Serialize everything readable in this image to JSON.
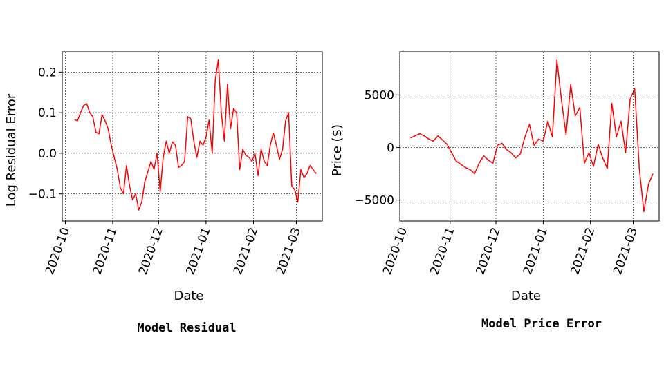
{
  "chart_data": [
    {
      "type": "line",
      "title": "",
      "xlabel": "Date",
      "ylabel": "Log Residual Error",
      "caption": "Model Residual",
      "xticks": [
        "2020-10",
        "2020-11",
        "2020-12",
        "2021-01",
        "2021-02",
        "2021-03"
      ],
      "yticks": [
        "0.2",
        "0.1",
        "0.0",
        "−0.1"
      ],
      "ytick_values": [
        0.2,
        0.1,
        0.0,
        -0.1
      ],
      "xlim": [
        "2020-09-29",
        "2021-03-18"
      ],
      "ylim": [
        -0.167,
        0.25
      ],
      "grid": true,
      "line_color": "#ff0000",
      "x": [
        "2020-10-07",
        "2020-10-09",
        "2020-10-11",
        "2020-10-13",
        "2020-10-15",
        "2020-10-17",
        "2020-10-19",
        "2020-10-21",
        "2020-10-23",
        "2020-10-25",
        "2020-10-27",
        "2020-10-29",
        "2020-10-31",
        "2020-11-02",
        "2020-11-04",
        "2020-11-06",
        "2020-11-08",
        "2020-11-10",
        "2020-11-12",
        "2020-11-14",
        "2020-11-16",
        "2020-11-18",
        "2020-11-20",
        "2020-11-22",
        "2020-11-24",
        "2020-11-26",
        "2020-11-28",
        "2020-11-30",
        "2020-12-02",
        "2020-12-04",
        "2020-12-06",
        "2020-12-08",
        "2020-12-10",
        "2020-12-12",
        "2020-12-14",
        "2020-12-16",
        "2020-12-18",
        "2020-12-20",
        "2020-12-22",
        "2020-12-24",
        "2020-12-26",
        "2020-12-28",
        "2020-12-30",
        "2021-01-01",
        "2021-01-03",
        "2021-01-05",
        "2021-01-07",
        "2021-01-09",
        "2021-01-11",
        "2021-01-13",
        "2021-01-15",
        "2021-01-17",
        "2021-01-19",
        "2021-01-21",
        "2021-01-23",
        "2021-01-25",
        "2021-01-27",
        "2021-01-29",
        "2021-01-31",
        "2021-02-02",
        "2021-02-04",
        "2021-02-06",
        "2021-02-08",
        "2021-02-10",
        "2021-02-12",
        "2021-02-14",
        "2021-02-16",
        "2021-02-18",
        "2021-02-20",
        "2021-02-22",
        "2021-02-24",
        "2021-02-26",
        "2021-02-28",
        "2021-03-02",
        "2021-03-04",
        "2021-03-06",
        "2021-03-08",
        "2021-03-10",
        "2021-03-12",
        "2021-03-14"
      ],
      "y": [
        0.083,
        0.08,
        0.1,
        0.118,
        0.122,
        0.1,
        0.09,
        0.052,
        0.048,
        0.095,
        0.08,
        0.06,
        0.02,
        -0.01,
        -0.04,
        -0.085,
        -0.1,
        -0.03,
        -0.08,
        -0.115,
        -0.1,
        -0.14,
        -0.12,
        -0.07,
        -0.045,
        -0.02,
        -0.04,
        0.0,
        -0.095,
        -0.01,
        0.03,
        0.0,
        0.028,
        0.02,
        -0.035,
        -0.03,
        -0.02,
        0.09,
        0.085,
        0.03,
        -0.01,
        0.03,
        0.02,
        0.04,
        0.082,
        0.0,
        0.18,
        0.23,
        0.1,
        0.03,
        0.17,
        0.06,
        0.11,
        0.1,
        -0.04,
        0.01,
        -0.005,
        -0.01,
        -0.02,
        0.0,
        -0.055,
        0.01,
        -0.02,
        -0.03,
        0.02,
        0.05,
        0.02,
        -0.015,
        0.01,
        0.08,
        0.1,
        -0.08,
        -0.09,
        -0.12,
        -0.04,
        -0.06,
        -0.05,
        -0.03,
        -0.04,
        -0.05
      ]
    },
    {
      "type": "line",
      "title": "",
      "xlabel": "Date",
      "ylabel": "Price ($)",
      "caption": "Model Price Error",
      "xticks": [
        "2020-10",
        "2020-11",
        "2020-12",
        "2021-01",
        "2021-02",
        "2021-03"
      ],
      "yticks": [
        "5000",
        "0",
        "−5000"
      ],
      "ytick_values": [
        5000,
        0,
        -5000
      ],
      "xlim": [
        "2020-09-29",
        "2021-03-18"
      ],
      "ylim": [
        -7000,
        9100
      ],
      "grid": true,
      "line_color": "#ff0000",
      "x": [
        "2020-10-06",
        "2020-10-09",
        "2020-10-12",
        "2020-10-15",
        "2020-10-18",
        "2020-10-21",
        "2020-10-24",
        "2020-10-27",
        "2020-10-30",
        "2020-11-02",
        "2020-11-05",
        "2020-11-08",
        "2020-11-11",
        "2020-11-14",
        "2020-11-17",
        "2020-11-20",
        "2020-11-23",
        "2020-11-26",
        "2020-11-29",
        "2020-12-02",
        "2020-12-05",
        "2020-12-08",
        "2020-12-11",
        "2020-12-14",
        "2020-12-17",
        "2020-12-20",
        "2020-12-23",
        "2020-12-26",
        "2020-12-29",
        "2021-01-01",
        "2021-01-04",
        "2021-01-07",
        "2021-01-10",
        "2021-01-13",
        "2021-01-16",
        "2021-01-19",
        "2021-01-22",
        "2021-01-25",
        "2021-01-28",
        "2021-01-31",
        "2021-02-03",
        "2021-02-06",
        "2021-02-09",
        "2021-02-12",
        "2021-02-15",
        "2021-02-18",
        "2021-02-21",
        "2021-02-24",
        "2021-02-27",
        "2021-03-02",
        "2021-03-05",
        "2021-03-08",
        "2021-03-11",
        "2021-03-14"
      ],
      "y": [
        900,
        1100,
        1300,
        1100,
        800,
        600,
        1100,
        700,
        300,
        -500,
        -1300,
        -1600,
        -1900,
        -2100,
        -2500,
        -1500,
        -800,
        -1200,
        -1500,
        200,
        400,
        -200,
        -500,
        -1000,
        -600,
        1000,
        2200,
        200,
        800,
        600,
        2500,
        1000,
        8300,
        4500,
        1200,
        6000,
        3000,
        3800,
        -1500,
        -500,
        -1800,
        300,
        -1000,
        -2000,
        4200,
        1000,
        2500,
        -500,
        4600,
        5600,
        -2000,
        -6100,
        -3500,
        -2500
      ]
    }
  ]
}
